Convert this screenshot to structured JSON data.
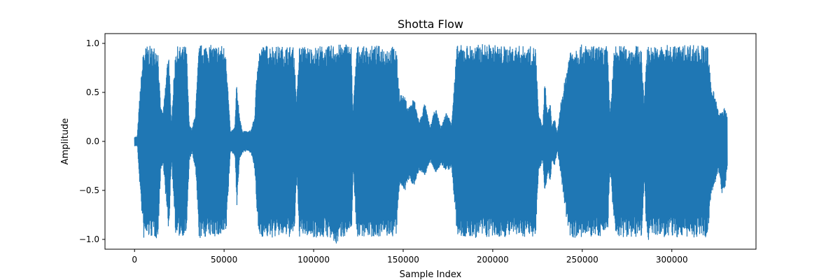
{
  "chart_data": {
    "type": "line",
    "title": "Shotta Flow",
    "xlabel": "Sample Index",
    "ylabel": "Amplitude",
    "xlim": [
      -16500,
      347000
    ],
    "ylim": [
      -1.1,
      1.1
    ],
    "x_ticks": [
      0,
      50000,
      100000,
      150000,
      200000,
      250000,
      300000
    ],
    "x_tick_labels": [
      "0",
      "50000",
      "100000",
      "150000",
      "200000",
      "250000",
      "300000"
    ],
    "y_ticks": [
      1.0,
      0.5,
      0.0,
      -0.5,
      -1.0
    ],
    "y_tick_labels": [
      "1.0",
      "0.5",
      "0.0",
      "−0.5",
      "−1.0"
    ],
    "grid": false,
    "color": "#1f77b4",
    "series": [
      {
        "x": [
          0,
          1500,
          3000,
          5000,
          7000,
          10000,
          13000,
          14500,
          16000,
          19000,
          20500,
          23000,
          26000,
          29000,
          30500,
          32000,
          34000,
          36000,
          39000,
          44000,
          48000,
          51000,
          52000,
          53500,
          56000,
          57000,
          58500,
          60000,
          63000,
          65000,
          67000,
          69000,
          72000,
          76000,
          81000,
          86000,
          89000,
          90500,
          92000,
          96000,
          100000,
          104000,
          108000,
          112000,
          115000,
          118000,
          121000,
          122000,
          124000,
          128000,
          133000,
          138000,
          143000,
          146000,
          148000,
          151000,
          153000,
          156000,
          159000,
          162000,
          165000,
          168000,
          171000,
          174000,
          177000,
          180000,
          185000,
          190000,
          195000,
          200000,
          205000,
          210000,
          215000,
          220000,
          224000,
          225500,
          228000,
          229000,
          230500,
          232000,
          233000,
          234500,
          236000,
          238000,
          240000,
          243000,
          246000,
          250000,
          255000,
          260000,
          264000,
          265500,
          268000,
          272000,
          276000,
          280000,
          283000,
          284500,
          286000,
          290000,
          295000,
          300000,
          305000,
          310000,
          315000,
          320000,
          322000,
          323500,
          326000,
          328000,
          329500,
          331000
        ],
        "upper": [
          0.05,
          0.05,
          0.5,
          0.95,
          0.98,
          0.97,
          0.98,
          0.35,
          0.3,
          0.98,
          0.2,
          0.97,
          0.97,
          0.98,
          0.2,
          0.12,
          0.3,
          0.98,
          1.0,
          0.98,
          0.99,
          0.97,
          0.6,
          0.1,
          0.15,
          0.6,
          0.3,
          0.12,
          0.1,
          0.12,
          0.25,
          0.95,
          0.98,
          0.99,
          0.97,
          0.98,
          0.96,
          0.4,
          0.98,
          0.97,
          0.96,
          0.98,
          0.97,
          1.0,
          0.99,
          1.01,
          0.98,
          0.3,
          0.98,
          0.97,
          0.98,
          0.98,
          0.97,
          0.98,
          0.5,
          0.45,
          0.35,
          0.45,
          0.2,
          0.4,
          0.15,
          0.35,
          0.15,
          0.3,
          0.2,
          0.98,
          0.99,
          0.98,
          1.0,
          0.99,
          0.98,
          0.97,
          0.98,
          0.97,
          0.97,
          0.3,
          0.15,
          0.65,
          0.3,
          0.42,
          0.15,
          0.25,
          0.08,
          0.4,
          0.6,
          0.95,
          0.98,
          0.99,
          0.98,
          0.97,
          0.98,
          0.3,
          0.98,
          0.98,
          0.97,
          0.98,
          0.96,
          0.4,
          0.98,
          0.97,
          0.98,
          0.99,
          0.98,
          1.0,
          0.99,
          0.98,
          0.55,
          0.55,
          0.3,
          0.3,
          0.35,
          0.26
        ],
        "lower": [
          -0.05,
          -0.05,
          -0.5,
          -1.0,
          -0.98,
          -0.98,
          -1.0,
          -0.3,
          -0.25,
          -0.98,
          -0.2,
          -0.99,
          -0.97,
          -0.95,
          -0.2,
          -0.12,
          -0.3,
          -1.0,
          -0.98,
          -0.97,
          -0.99,
          -0.97,
          -0.6,
          -0.1,
          -0.15,
          -0.68,
          -0.2,
          -0.12,
          -0.1,
          -0.12,
          -0.3,
          -0.97,
          -0.98,
          -0.99,
          -0.97,
          -0.98,
          -0.99,
          -0.4,
          -0.98,
          -0.97,
          -0.98,
          -0.99,
          -0.98,
          -1.08,
          -0.99,
          -0.96,
          -0.98,
          -0.3,
          -0.98,
          -0.97,
          -0.98,
          -0.97,
          -0.98,
          -0.97,
          -0.45,
          -0.5,
          -0.4,
          -0.45,
          -0.3,
          -0.35,
          -0.22,
          -0.32,
          -0.25,
          -0.3,
          -0.28,
          -0.97,
          -0.99,
          -0.99,
          -0.98,
          -0.99,
          -0.98,
          -0.97,
          -0.98,
          -0.97,
          -0.97,
          -0.3,
          -0.2,
          -0.6,
          -0.3,
          -0.45,
          -0.2,
          -0.25,
          -0.1,
          -0.35,
          -0.7,
          -0.97,
          -0.99,
          -0.99,
          -0.98,
          -0.97,
          -0.98,
          -0.3,
          -0.98,
          -0.98,
          -0.97,
          -0.98,
          -0.99,
          -0.4,
          -1.02,
          -0.97,
          -0.98,
          -0.99,
          -0.98,
          -0.98,
          -0.99,
          -0.98,
          -0.5,
          -0.5,
          -0.3,
          -0.55,
          -0.5,
          -0.27
        ]
      }
    ]
  }
}
